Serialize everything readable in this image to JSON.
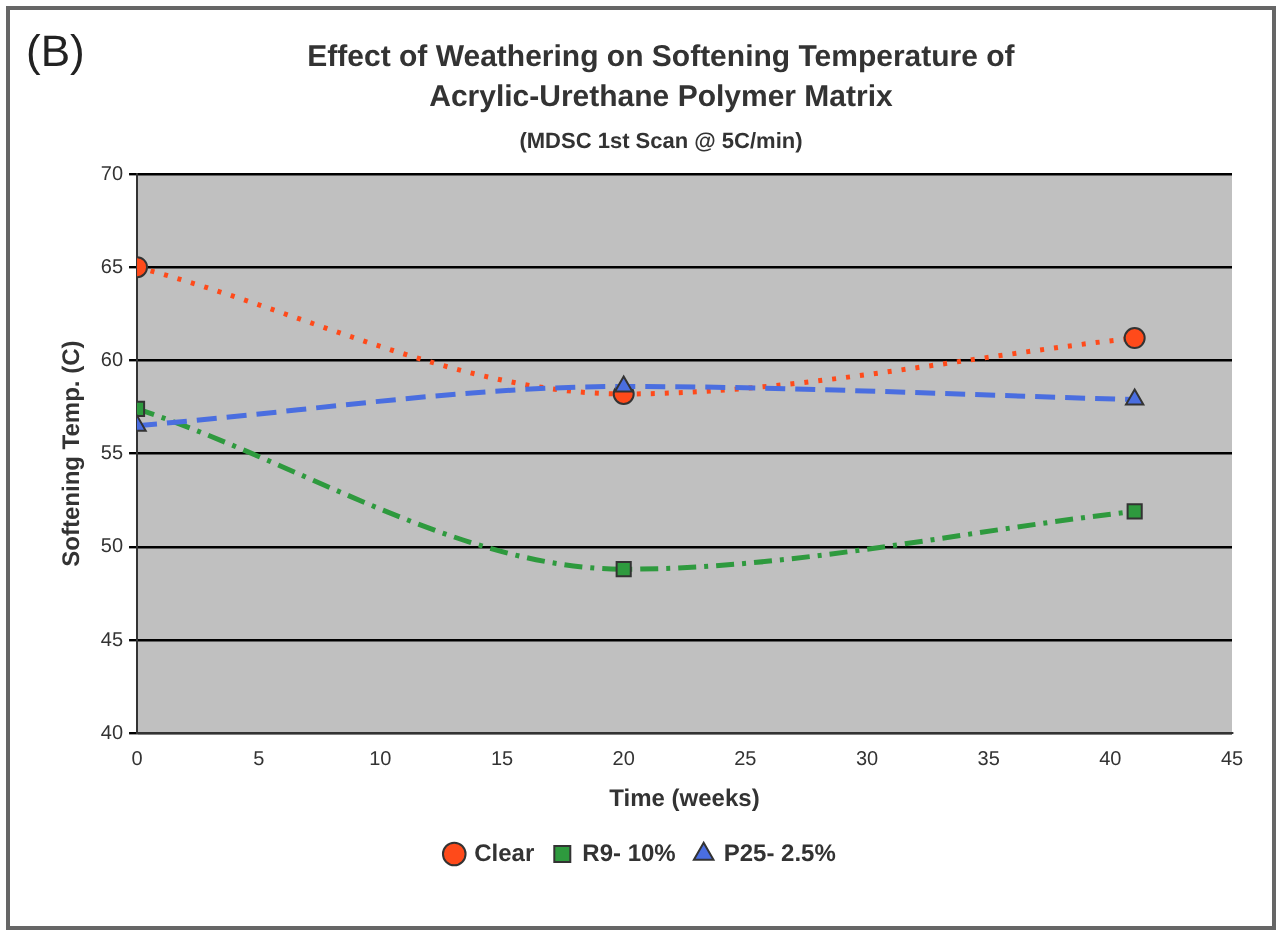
{
  "chart_data": {
    "type": "line",
    "title": "Effect of Weathering on Softening Temperature of Acrylic-Urethane Polymer Matrix",
    "subtitle": "(MDSC 1st Scan @ 5C/min)",
    "annotations": [
      "(B)"
    ],
    "xlabel": "Time (weeks)",
    "ylabel": "Softening Temp. (C)",
    "x": [
      0,
      20,
      41
    ],
    "series": [
      {
        "name": "Clear",
        "color": "#ff4a1a",
        "values": [
          65,
          58.2,
          61.2
        ],
        "marker": "circle",
        "line_style": "dotted"
      },
      {
        "name": "R9- 10%",
        "color": "#2e9a3e",
        "values": [
          57.4,
          48.8,
          51.9
        ],
        "marker": "square",
        "line_style": "dashdot"
      },
      {
        "name": "P25- 2.5%",
        "color": "#4a6ee0",
        "values": [
          56.5,
          58.6,
          57.9
        ],
        "marker": "triangle",
        "line_style": "dashed"
      }
    ],
    "xlim": [
      0,
      45
    ],
    "xticks": [
      0,
      5,
      10,
      15,
      20,
      25,
      30,
      35,
      40,
      45
    ],
    "ylim": [
      40,
      70
    ],
    "yticks": [
      40,
      45,
      50,
      55,
      60,
      65,
      70
    ],
    "grid": "y",
    "legend": "bottom"
  }
}
